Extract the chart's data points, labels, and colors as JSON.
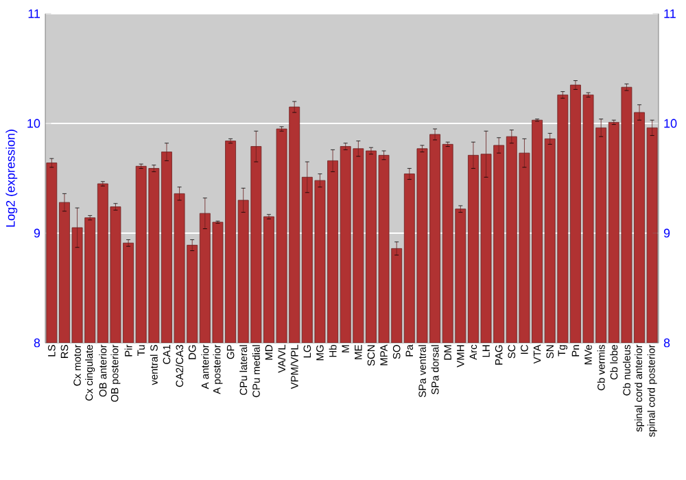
{
  "chart_data": {
    "type": "bar",
    "ylabel": "Log2 (expression)",
    "categories": [
      "LS",
      "RS",
      "Cx motor",
      "Cx cingulate",
      "OB anterior",
      "OB posterior",
      "Pir",
      "Tu",
      "ventral S",
      "CA1",
      "CA2/CA3",
      "DG",
      "A anterior",
      "A posterior",
      "GP",
      "CPu lateral",
      "CPu medial",
      "MD",
      "VA/VL",
      "VPM/VPL",
      "LG",
      "MG",
      "Hb",
      "M",
      "ME",
      "SCN",
      "MPA",
      "SO",
      "Pa",
      "SPa ventral",
      "SPa dorsal",
      "DM",
      "VMH",
      "Arc",
      "LH",
      "PAG",
      "SC",
      "IC",
      "VTA",
      "SN",
      "Tg",
      "Pn",
      "MVe",
      "Cb vermis",
      "Cb lobe",
      "Cb nucleus",
      "spinal cord anterior",
      "spinal cord posterior"
    ],
    "values": [
      9.64,
      9.28,
      9.05,
      9.14,
      9.45,
      9.24,
      8.91,
      9.61,
      9.59,
      9.74,
      9.36,
      8.89,
      9.18,
      9.1,
      9.84,
      9.3,
      9.79,
      9.15,
      9.95,
      10.15,
      9.51,
      9.48,
      9.66,
      9.79,
      9.77,
      9.75,
      9.71,
      8.86,
      9.54,
      9.77,
      9.9,
      9.81,
      9.22,
      9.71,
      9.72,
      9.8,
      9.88,
      9.73,
      10.03,
      9.86,
      10.26,
      10.35,
      10.26,
      9.96,
      10.01,
      10.33,
      10.1,
      9.96
    ],
    "errors": [
      0.04,
      0.08,
      0.18,
      0.02,
      0.02,
      0.03,
      0.03,
      0.02,
      0.03,
      0.08,
      0.06,
      0.05,
      0.14,
      0.01,
      0.02,
      0.11,
      0.14,
      0.02,
      0.02,
      0.05,
      0.14,
      0.06,
      0.1,
      0.03,
      0.07,
      0.03,
      0.04,
      0.06,
      0.05,
      0.03,
      0.05,
      0.02,
      0.03,
      0.12,
      0.21,
      0.07,
      0.06,
      0.13,
      0.01,
      0.05,
      0.03,
      0.04,
      0.02,
      0.08,
      0.02,
      0.03,
      0.07,
      0.07
    ],
    "color": "#b03232",
    "ylim": [
      8,
      11
    ],
    "yticks": [
      8,
      9,
      10,
      11
    ],
    "y2lim": [
      8,
      11
    ],
    "y2ticks": [
      8,
      9,
      10,
      11
    ],
    "grid": "y"
  }
}
